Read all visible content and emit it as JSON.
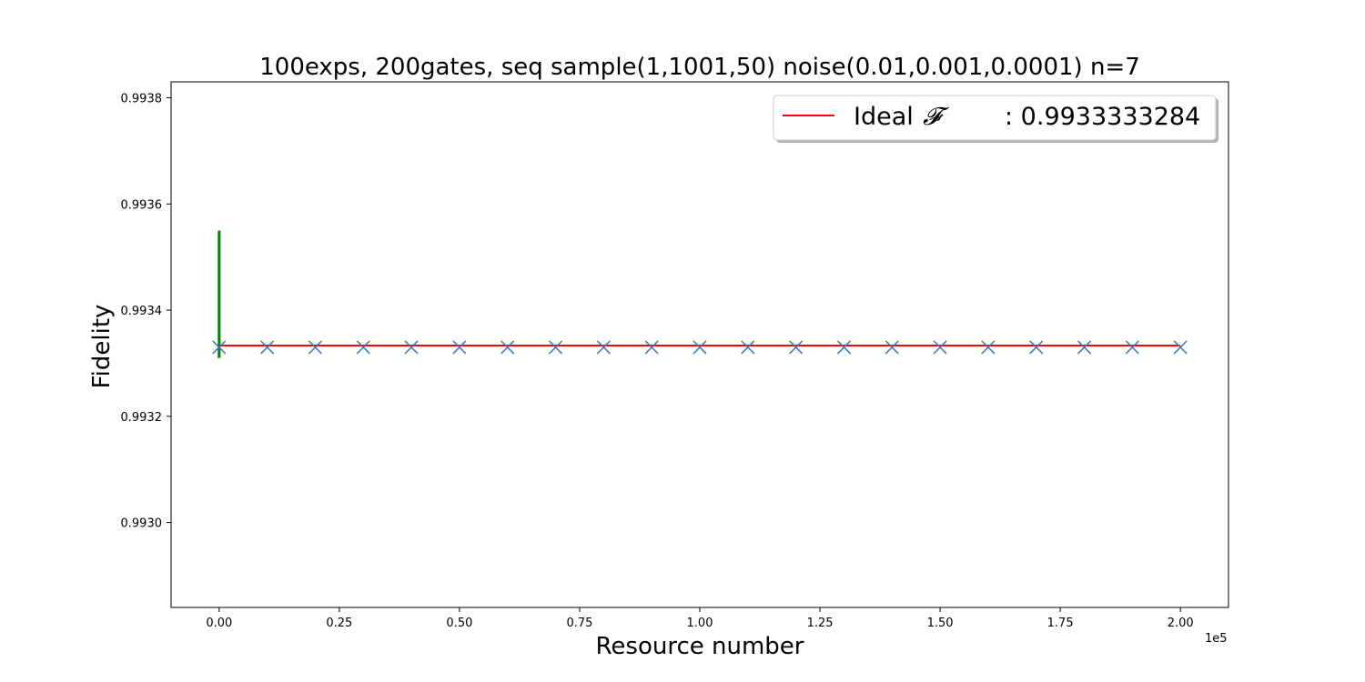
{
  "chart_data": {
    "type": "scatter",
    "title": "100exps, 200gates, seq sample(1,1001,50) noise(0.01,0.001,0.0001) n=7",
    "xlabel": "Resource number",
    "ylabel": "Fidelity",
    "x_offset_label": "1e5",
    "xlim": [
      -0.1,
      2.1
    ],
    "ylim": [
      0.99284,
      0.99383
    ],
    "x_ticks": [
      0.0,
      0.25,
      0.5,
      0.75,
      1.0,
      1.25,
      1.5,
      1.75,
      2.0
    ],
    "x_tick_labels": [
      "0.00",
      "0.25",
      "0.50",
      "0.75",
      "1.00",
      "1.25",
      "1.50",
      "1.75",
      "2.00"
    ],
    "y_ticks": [
      0.993,
      0.9932,
      0.9934,
      0.9936,
      0.9938
    ],
    "y_tick_labels": [
      "0.9930",
      "0.9932",
      "0.9934",
      "0.9936",
      "0.9938"
    ],
    "grid": false,
    "legend_position": "top-right",
    "series": [
      {
        "marker": "x",
        "color": "#3a78b5",
        "x": [
          0.0,
          0.1,
          0.2,
          0.3,
          0.4,
          0.5,
          0.6,
          0.7,
          0.8,
          0.9,
          1.0,
          1.1,
          1.2,
          1.3,
          1.4,
          1.5,
          1.6,
          1.7,
          1.8,
          1.9,
          2.0
        ],
        "y": [
          0.99333,
          0.99333,
          0.99333,
          0.99333,
          0.99333,
          0.99333,
          0.99333,
          0.99333,
          0.99333,
          0.99333,
          0.99333,
          0.99333,
          0.99333,
          0.99333,
          0.99333,
          0.99333,
          0.99333,
          0.99333,
          0.99333,
          0.99333,
          0.99333
        ]
      }
    ],
    "ideal_line": {
      "label_prefix": "Ideal ",
      "label_symbol": "𝓕",
      "label_value": ": 0.9933333284",
      "y": 0.9933333284,
      "x_range": [
        0.0,
        2.0
      ],
      "color": "#ff0000"
    },
    "error_bar": {
      "x": 0.0,
      "y_low": 0.99331,
      "y_high": 0.99355,
      "color": "#008000"
    }
  }
}
